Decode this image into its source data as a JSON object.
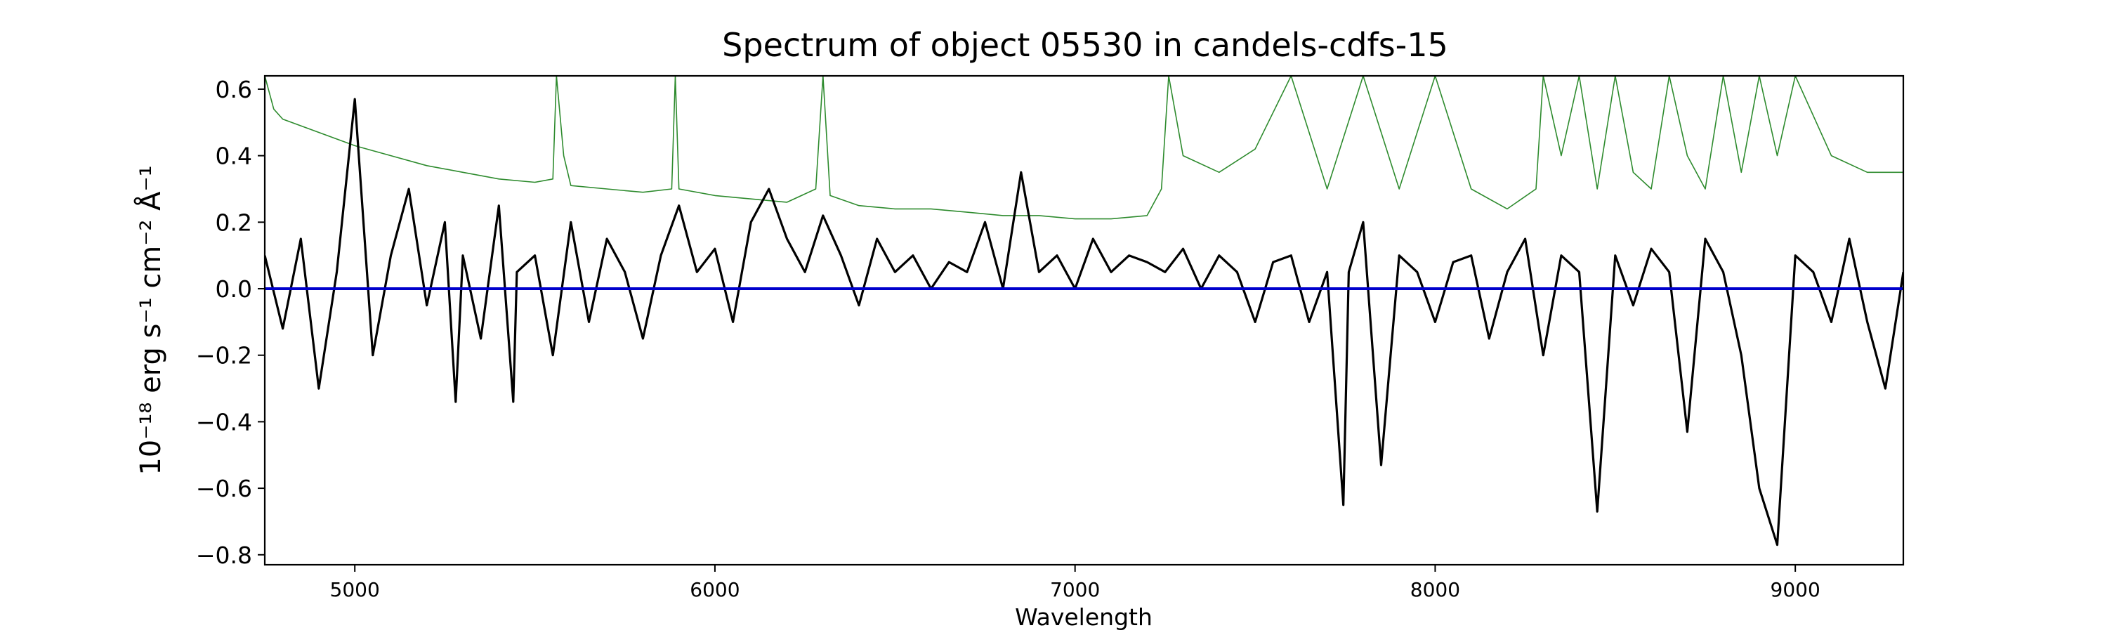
{
  "chart_data": {
    "type": "line",
    "title": "Spectrum of object 05530 in candels-cdfs-15",
    "xlabel": "Wavelength",
    "ylabel": "10⁻¹⁸ erg s⁻¹ cm⁻² Å⁻¹",
    "xlim": [
      4750,
      9300
    ],
    "ylim": [
      -0.83,
      0.64
    ],
    "grid": false,
    "x_ticks": [
      5000,
      6000,
      7000,
      8000,
      9000
    ],
    "y_ticks": [
      -0.8,
      -0.6,
      -0.4,
      -0.2,
      0.0,
      0.2,
      0.4,
      0.6
    ],
    "y_tick_labels": [
      "−0.8",
      "−0.6",
      "−0.4",
      "−0.2",
      "0.0",
      "0.2",
      "0.4",
      "0.6"
    ],
    "colors": {
      "flux": "#000000",
      "noise": "#2e8b2e",
      "zero": "#0000cc"
    },
    "series": [
      {
        "role": "flux",
        "x": [
          4750,
          4800,
          4850,
          4900,
          4950,
          5000,
          5050,
          5100,
          5150,
          5200,
          5250,
          5280,
          5300,
          5350,
          5400,
          5440,
          5450,
          5500,
          5550,
          5600,
          5650,
          5700,
          5750,
          5800,
          5850,
          5900,
          5950,
          6000,
          6050,
          6100,
          6150,
          6200,
          6250,
          6300,
          6350,
          6400,
          6450,
          6500,
          6550,
          6600,
          6650,
          6700,
          6750,
          6800,
          6850,
          6900,
          6950,
          7000,
          7050,
          7100,
          7150,
          7200,
          7250,
          7300,
          7350,
          7400,
          7450,
          7500,
          7550,
          7600,
          7650,
          7700,
          7745,
          7760,
          7800,
          7850,
          7900,
          7950,
          8000,
          8050,
          8100,
          8150,
          8200,
          8250,
          8300,
          8350,
          8400,
          8450,
          8500,
          8550,
          8600,
          8650,
          8700,
          8750,
          8800,
          8850,
          8900,
          8950,
          9000,
          9050,
          9100,
          9150,
          9200,
          9250,
          9300
        ],
        "y": [
          0.1,
          -0.12,
          0.15,
          -0.3,
          0.05,
          0.57,
          -0.2,
          0.1,
          0.3,
          -0.05,
          0.2,
          -0.34,
          0.1,
          -0.15,
          0.25,
          -0.34,
          0.05,
          0.1,
          -0.2,
          0.2,
          -0.1,
          0.15,
          0.05,
          -0.15,
          0.1,
          0.25,
          0.05,
          0.12,
          -0.1,
          0.2,
          0.3,
          0.15,
          0.05,
          0.22,
          0.1,
          -0.05,
          0.15,
          0.05,
          0.1,
          0.0,
          0.08,
          0.05,
          0.2,
          0.0,
          0.35,
          0.05,
          0.1,
          0.0,
          0.15,
          0.05,
          0.1,
          0.08,
          0.05,
          0.12,
          0.0,
          0.1,
          0.05,
          -0.1,
          0.08,
          0.1,
          -0.1,
          0.05,
          -0.65,
          0.05,
          0.2,
          -0.53,
          0.1,
          0.05,
          -0.1,
          0.08,
          0.1,
          -0.15,
          0.05,
          0.15,
          -0.2,
          0.1,
          0.05,
          -0.67,
          0.1,
          -0.05,
          0.12,
          0.05,
          -0.43,
          0.15,
          0.05,
          -0.2,
          -0.6,
          -0.77,
          0.1,
          0.05,
          -0.1,
          0.15,
          -0.1,
          -0.3,
          0.05
        ]
      },
      {
        "role": "noise",
        "x": [
          4750,
          4775,
          4800,
          4900,
          5000,
          5100,
          5200,
          5300,
          5400,
          5500,
          5550,
          5560,
          5580,
          5600,
          5700,
          5800,
          5880,
          5890,
          5900,
          6000,
          6100,
          6200,
          6280,
          6300,
          6320,
          6400,
          6500,
          6600,
          6700,
          6800,
          6900,
          7000,
          7100,
          7200,
          7240,
          7260,
          7300,
          7400,
          7500,
          7600,
          7700,
          7800,
          7900,
          8000,
          8100,
          8200,
          8280,
          8300,
          8350,
          8400,
          8450,
          8500,
          8550,
          8600,
          8650,
          8700,
          8750,
          8800,
          8850,
          8900,
          8950,
          9000,
          9100,
          9200,
          9300
        ],
        "y": [
          0.64,
          0.54,
          0.51,
          0.47,
          0.43,
          0.4,
          0.37,
          0.35,
          0.33,
          0.32,
          0.33,
          0.64,
          0.4,
          0.31,
          0.3,
          0.29,
          0.3,
          0.64,
          0.3,
          0.28,
          0.27,
          0.26,
          0.3,
          0.64,
          0.28,
          0.25,
          0.24,
          0.24,
          0.23,
          0.22,
          0.22,
          0.21,
          0.21,
          0.22,
          0.3,
          0.64,
          0.4,
          0.35,
          0.42,
          0.64,
          0.3,
          0.64,
          0.3,
          0.64,
          0.3,
          0.24,
          0.3,
          0.64,
          0.4,
          0.64,
          0.3,
          0.64,
          0.35,
          0.3,
          0.64,
          0.4,
          0.3,
          0.64,
          0.35,
          0.64,
          0.4,
          0.64,
          0.4,
          0.35,
          0.35
        ]
      },
      {
        "role": "zero",
        "x": [
          4750,
          9300
        ],
        "y": [
          0.0,
          0.0
        ]
      }
    ]
  }
}
